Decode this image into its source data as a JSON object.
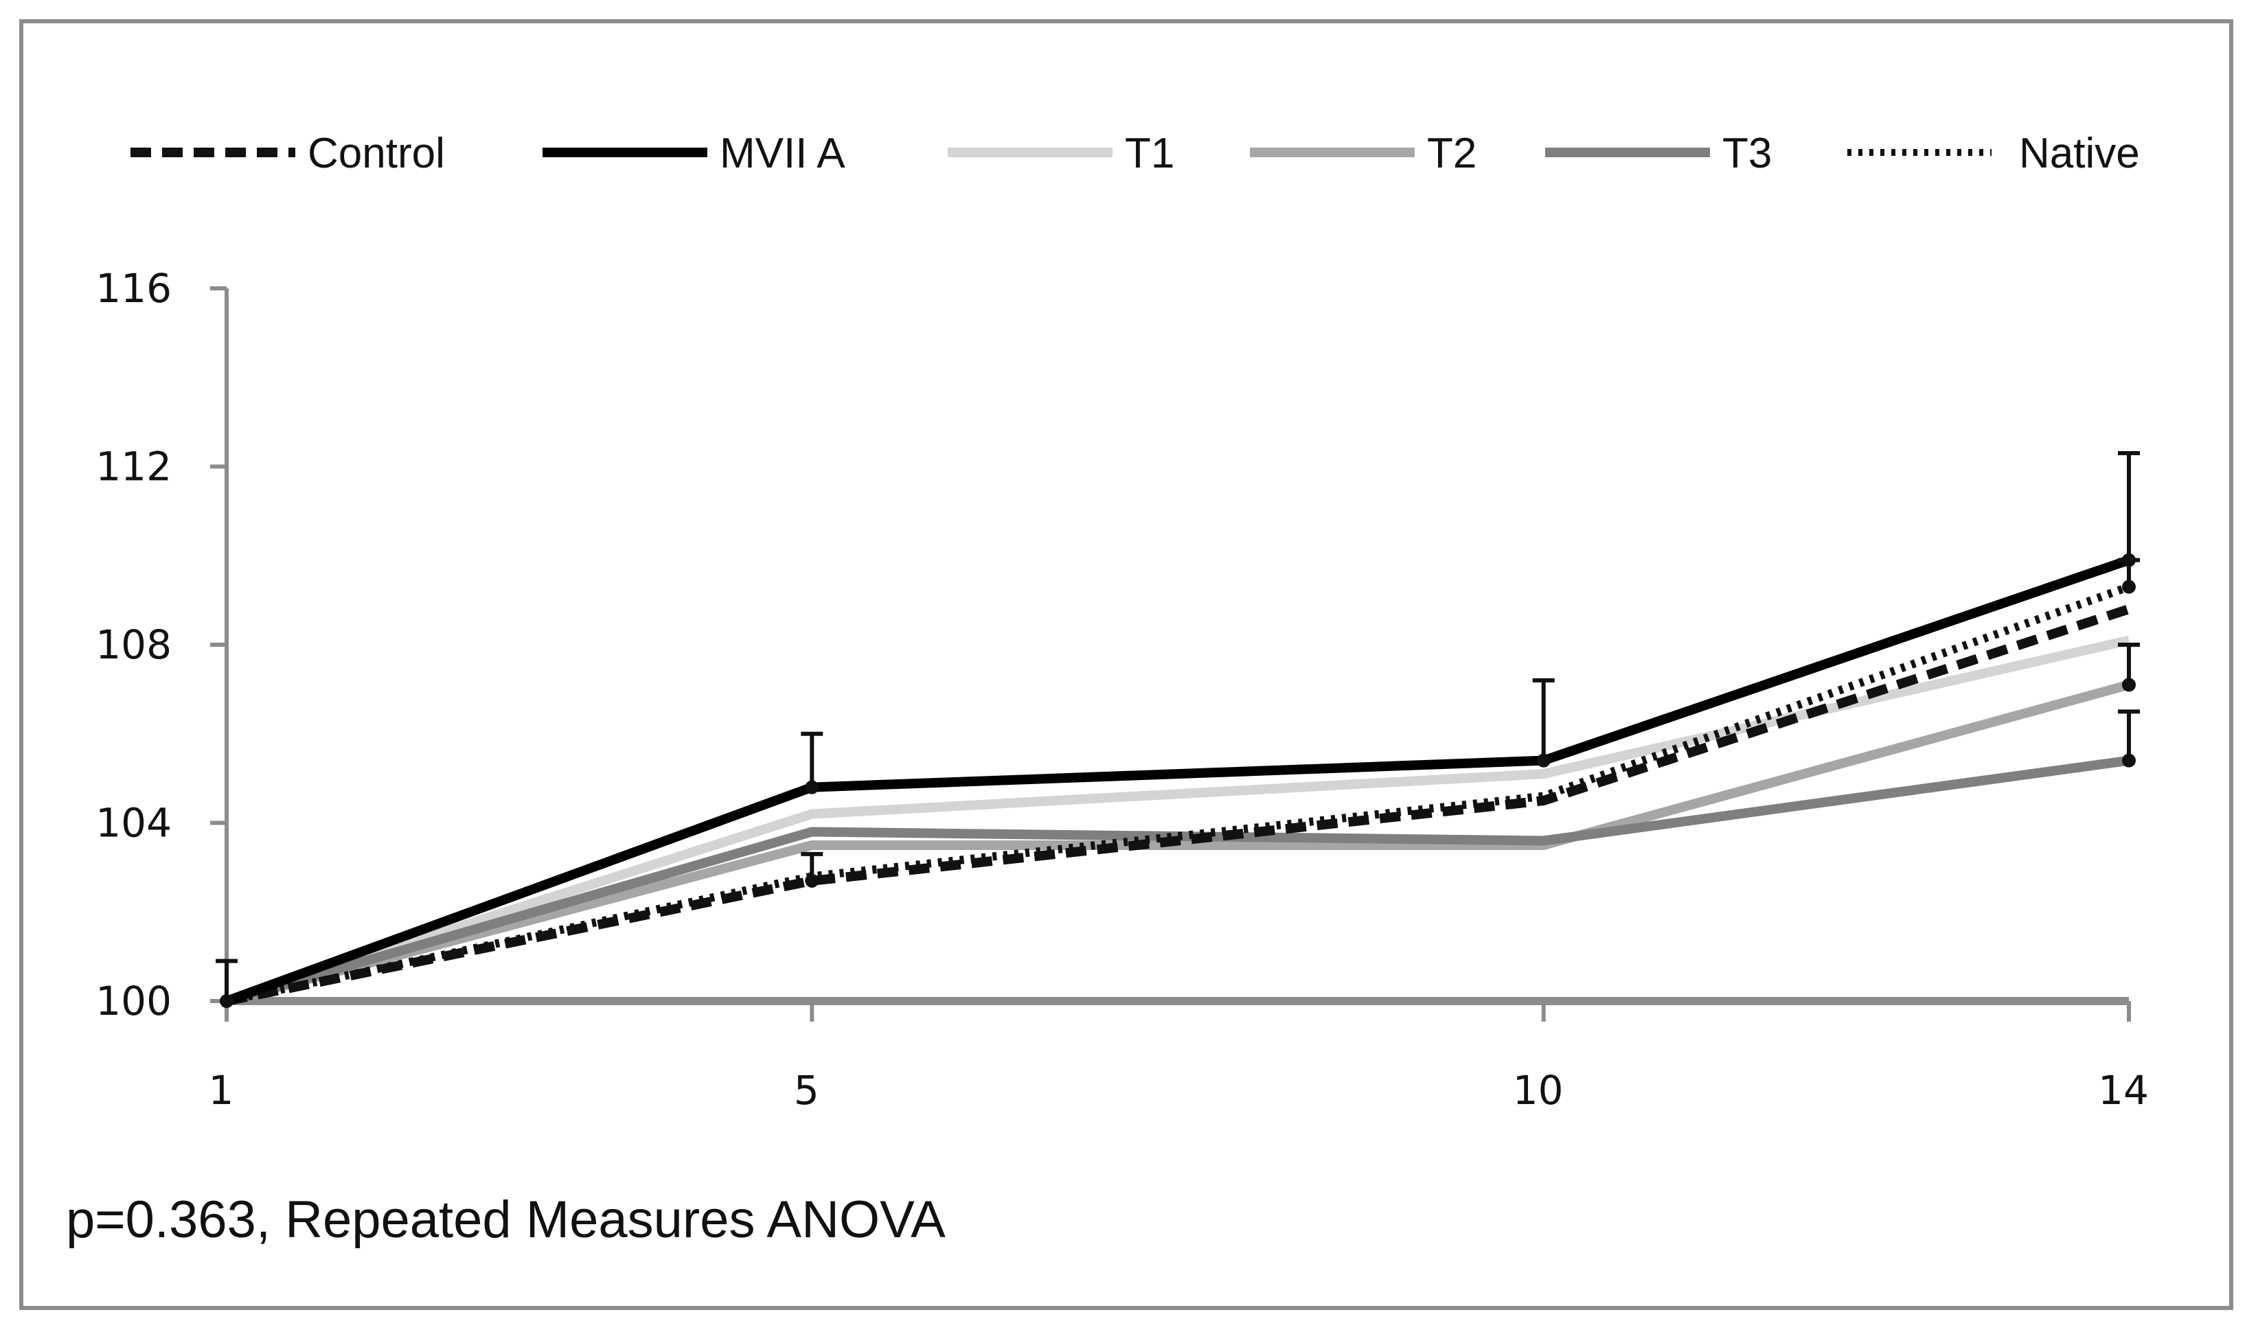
{
  "chart_data": {
    "type": "line",
    "title": "",
    "xlabel": "",
    "ylabel": "",
    "x": [
      1,
      5,
      10,
      14
    ],
    "x_tick_labels": [
      "1",
      "5",
      "10",
      "14"
    ],
    "ylim": [
      100,
      116
    ],
    "y_ticks": [
      100,
      104,
      108,
      112,
      116
    ],
    "grid": false,
    "legend_position": "top",
    "series": [
      {
        "name": "Control",
        "values": [
          100,
          102.7,
          104.5,
          108.8
        ],
        "style": "dashed",
        "color": "#111111",
        "error": [
          0,
          0.6,
          0,
          0
        ]
      },
      {
        "name": "MVII A",
        "values": [
          100,
          104.8,
          105.4,
          109.9
        ],
        "style": "solid",
        "color": "#000000",
        "error": [
          0.9,
          1.2,
          1.8,
          2.4
        ]
      },
      {
        "name": "T1",
        "values": [
          100,
          104.2,
          105.1,
          108.1
        ],
        "style": "solid",
        "color": "#d4d4d4",
        "error": [
          0,
          0,
          0,
          0
        ]
      },
      {
        "name": "T2",
        "values": [
          100,
          103.5,
          103.5,
          107.1
        ],
        "style": "solid",
        "color": "#a6a6a6",
        "error": [
          0,
          0,
          0,
          0.9
        ]
      },
      {
        "name": "T3",
        "values": [
          100,
          103.8,
          103.6,
          105.4
        ],
        "style": "solid",
        "color": "#7f7f7f",
        "error": [
          0,
          0,
          0,
          1.1
        ]
      },
      {
        "name": "Native",
        "values": [
          100,
          102.8,
          104.6,
          109.3
        ],
        "style": "dotted",
        "color": "#111111",
        "error": [
          0,
          0,
          0,
          0.6
        ]
      }
    ],
    "annotation": "p=0.363, Repeated Measures ANOVA"
  }
}
